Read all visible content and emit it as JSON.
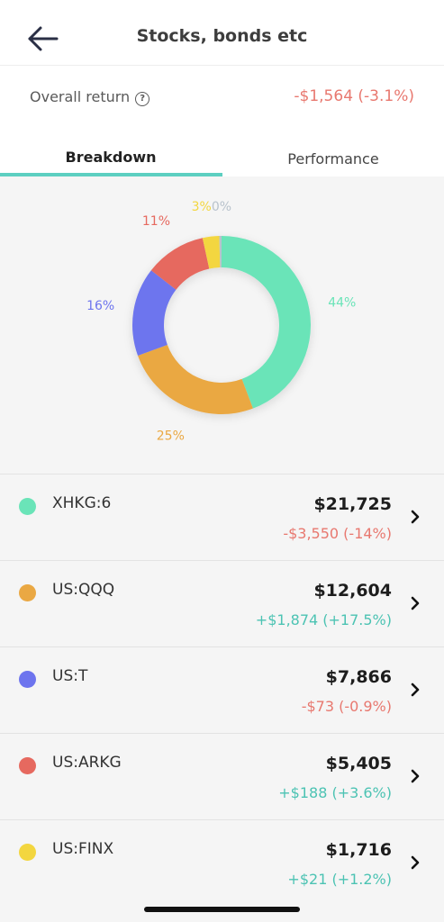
{
  "header": {
    "title": "Stocks, bonds etc",
    "back_icon": "arrow-left-icon"
  },
  "overall_return": {
    "label": "Overall return",
    "help_icon": "?",
    "value": "-$1,564 (-3.1%)"
  },
  "tabs": [
    {
      "label": "Breakdown",
      "active": true
    },
    {
      "label": "Performance",
      "active": false
    }
  ],
  "chart_data": {
    "type": "pie",
    "variant": "donut",
    "slices": [
      {
        "label": "44%",
        "value": 44,
        "color": "#6ae4b8"
      },
      {
        "label": "25%",
        "value": 25,
        "color": "#eaa843"
      },
      {
        "label": "16%",
        "value": 16,
        "color": "#6d74ee"
      },
      {
        "label": "11%",
        "value": 11,
        "color": "#e6695f"
      },
      {
        "label": "3%",
        "value": 3,
        "color": "#f3d63f"
      },
      {
        "label": "0%",
        "value": 0.4,
        "color": "#b8c2cc"
      }
    ]
  },
  "holdings": [
    {
      "ticker": "XHKG:6",
      "amount": "$21,725",
      "change": "-$3,550 (-14%)",
      "direction": "neg",
      "color": "#6ae4b8"
    },
    {
      "ticker": "US:QQQ",
      "amount": "$12,604",
      "change": "+$1,874 (+17.5%)",
      "direction": "pos",
      "color": "#eaa843"
    },
    {
      "ticker": "US:T",
      "amount": "$7,866",
      "change": "-$73 (-0.9%)",
      "direction": "neg",
      "color": "#6d74ee"
    },
    {
      "ticker": "US:ARKG",
      "amount": "$5,405",
      "change": "+$188 (+3.6%)",
      "direction": "pos",
      "color": "#e6695f"
    },
    {
      "ticker": "US:FINX",
      "amount": "$1,716",
      "change": "+$21 (+1.2%)",
      "direction": "pos",
      "color": "#f3d63f"
    }
  ]
}
